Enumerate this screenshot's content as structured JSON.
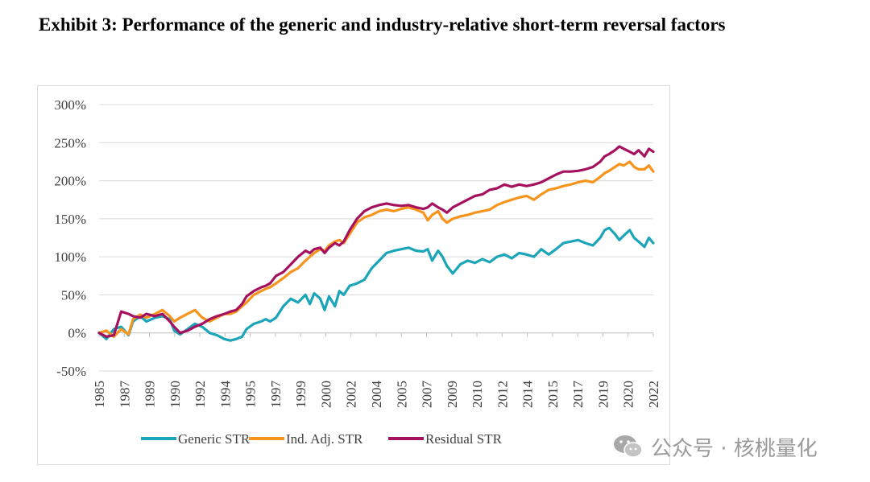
{
  "title": "Exhibit 3: Performance of the generic and industry-relative short-term reversal factors",
  "watermark": {
    "text": "公众号 · 核桃量化",
    "icon": "wechat-icon"
  },
  "chart_data": {
    "type": "line",
    "title": "Performance of the generic and industry-relative short-term reversal factors",
    "xlabel": "",
    "ylabel": "",
    "xlim": [
      1985,
      2022.6
    ],
    "ylim": [
      -50,
      300
    ],
    "y_ticks": [
      -50,
      0,
      50,
      100,
      150,
      200,
      250,
      300
    ],
    "y_tick_labels": [
      "-50%",
      "0%",
      "50%",
      "100%",
      "150%",
      "200%",
      "250%",
      "300%"
    ],
    "x_tick_labels": [
      "1985",
      "1987",
      "1989",
      "1990",
      "1992",
      "1994",
      "1995",
      "1997",
      "1999",
      "2000",
      "2002",
      "2004",
      "2005",
      "2007",
      "2009",
      "2010",
      "2012",
      "2014",
      "2015",
      "2017",
      "2019",
      "2020",
      "2022"
    ],
    "grid": "horizontal",
    "legend": "bottom",
    "series": [
      {
        "name": "Generic STR",
        "color": "#1BA5B8",
        "x": [
          1985,
          1985.5,
          1986,
          1986.5,
          1987,
          1987.3,
          1987.8,
          1988.2,
          1988.8,
          1989.3,
          1989.8,
          1990.1,
          1990.5,
          1991,
          1991.5,
          1992,
          1992.5,
          1993,
          1993.5,
          1993.9,
          1994.3,
          1994.7,
          1995,
          1995.5,
          1996,
          1996.3,
          1996.6,
          1997,
          1997.5,
          1998,
          1998.5,
          1999,
          1999.3,
          1999.6,
          2000,
          2000.3,
          2000.6,
          2001,
          2001.3,
          2001.6,
          2002,
          2002.5,
          2003,
          2003.5,
          2004,
          2004.5,
          2005,
          2005.5,
          2006,
          2006.5,
          2007,
          2007.3,
          2007.6,
          2008,
          2008.3,
          2008.6,
          2009,
          2009.5,
          2010,
          2010.5,
          2011,
          2011.5,
          2012,
          2012.5,
          2013,
          2013.5,
          2014,
          2014.5,
          2015,
          2015.5,
          2016,
          2016.5,
          2017,
          2017.5,
          2018,
          2018.5,
          2019,
          2019.3,
          2019.6,
          2020,
          2020.3,
          2020.6,
          2021,
          2021.3,
          2021.6,
          2022,
          2022.3,
          2022.6
        ],
        "values": [
          0,
          -8,
          5,
          8,
          -3,
          15,
          22,
          15,
          20,
          22,
          18,
          3,
          -2,
          5,
          12,
          8,
          0,
          -3,
          -8,
          -10,
          -8,
          -5,
          5,
          12,
          15,
          18,
          15,
          20,
          35,
          45,
          40,
          50,
          38,
          52,
          45,
          30,
          48,
          35,
          55,
          50,
          62,
          65,
          70,
          85,
          95,
          105,
          108,
          110,
          112,
          108,
          107,
          110,
          95,
          108,
          100,
          88,
          78,
          90,
          95,
          92,
          97,
          93,
          100,
          103,
          98,
          105,
          103,
          100,
          110,
          103,
          110,
          118,
          120,
          122,
          118,
          115,
          125,
          135,
          138,
          130,
          122,
          128,
          135,
          125,
          120,
          113,
          125,
          118
        ]
      },
      {
        "name": "Ind. Adj. STR",
        "color": "#F7941D",
        "x": [
          1985,
          1985.5,
          1986,
          1986.5,
          1987,
          1987.3,
          1987.8,
          1988.2,
          1988.8,
          1989.3,
          1989.8,
          1990.1,
          1990.5,
          1991,
          1991.5,
          1992,
          1992.5,
          1993,
          1993.5,
          1993.9,
          1994.3,
          1994.7,
          1995,
          1995.5,
          1996,
          1996.3,
          1996.6,
          1997,
          1997.5,
          1998,
          1998.5,
          1999,
          1999.3,
          1999.6,
          2000,
          2000.3,
          2000.6,
          2001,
          2001.3,
          2001.6,
          2002,
          2002.5,
          2003,
          2003.5,
          2004,
          2004.5,
          2005,
          2005.5,
          2006,
          2006.5,
          2007,
          2007.3,
          2007.6,
          2008,
          2008.3,
          2008.6,
          2009,
          2009.5,
          2010,
          2010.5,
          2011,
          2011.5,
          2012,
          2012.5,
          2013,
          2013.5,
          2014,
          2014.5,
          2015,
          2015.5,
          2016,
          2016.5,
          2017,
          2017.5,
          2018,
          2018.5,
          2019,
          2019.3,
          2019.6,
          2020,
          2020.3,
          2020.6,
          2021,
          2021.3,
          2021.6,
          2022,
          2022.3,
          2022.6
        ],
        "values": [
          0,
          3,
          -5,
          5,
          -2,
          18,
          24,
          20,
          25,
          30,
          22,
          15,
          20,
          25,
          30,
          20,
          15,
          20,
          25,
          25,
          28,
          35,
          40,
          50,
          55,
          58,
          60,
          65,
          72,
          80,
          85,
          95,
          100,
          105,
          110,
          108,
          115,
          120,
          122,
          118,
          130,
          145,
          152,
          155,
          160,
          162,
          160,
          163,
          165,
          162,
          158,
          148,
          155,
          160,
          150,
          145,
          150,
          153,
          155,
          158,
          160,
          162,
          168,
          172,
          175,
          178,
          180,
          175,
          182,
          188,
          190,
          193,
          195,
          198,
          200,
          198,
          205,
          210,
          213,
          218,
          222,
          220,
          225,
          218,
          215,
          215,
          220,
          212
        ]
      },
      {
        "name": "Residual STR",
        "color": "#A6115F",
        "x": [
          1985,
          1985.5,
          1986,
          1986.5,
          1987,
          1987.3,
          1987.8,
          1988.2,
          1988.8,
          1989.3,
          1989.8,
          1990.1,
          1990.5,
          1991,
          1991.5,
          1992,
          1992.5,
          1993,
          1993.5,
          1993.9,
          1994.3,
          1994.7,
          1995,
          1995.5,
          1996,
          1996.3,
          1996.6,
          1997,
          1997.5,
          1998,
          1998.5,
          1999,
          1999.3,
          1999.6,
          2000,
          2000.3,
          2000.6,
          2001,
          2001.3,
          2001.6,
          2002,
          2002.5,
          2003,
          2003.5,
          2004,
          2004.5,
          2005,
          2005.5,
          2006,
          2006.5,
          2007,
          2007.3,
          2007.6,
          2008,
          2008.3,
          2008.6,
          2009,
          2009.5,
          2010,
          2010.5,
          2011,
          2011.5,
          2012,
          2012.5,
          2013,
          2013.5,
          2014,
          2014.5,
          2015,
          2015.5,
          2016,
          2016.5,
          2017,
          2017.5,
          2018,
          2018.5,
          2019,
          2019.3,
          2019.6,
          2020,
          2020.3,
          2020.6,
          2021,
          2021.3,
          2021.6,
          2022,
          2022.3,
          2022.6
        ],
        "values": [
          0,
          -5,
          -3,
          28,
          25,
          22,
          20,
          25,
          22,
          25,
          15,
          8,
          0,
          3,
          8,
          12,
          18,
          22,
          25,
          28,
          30,
          38,
          48,
          55,
          60,
          62,
          65,
          75,
          80,
          90,
          100,
          108,
          105,
          110,
          112,
          105,
          112,
          118,
          115,
          120,
          135,
          150,
          160,
          165,
          168,
          170,
          168,
          167,
          168,
          165,
          163,
          165,
          170,
          165,
          162,
          158,
          165,
          170,
          175,
          180,
          182,
          188,
          190,
          195,
          192,
          195,
          193,
          195,
          198,
          203,
          208,
          212,
          212,
          213,
          215,
          218,
          225,
          232,
          235,
          240,
          245,
          242,
          238,
          235,
          240,
          232,
          242,
          238
        ]
      }
    ]
  }
}
